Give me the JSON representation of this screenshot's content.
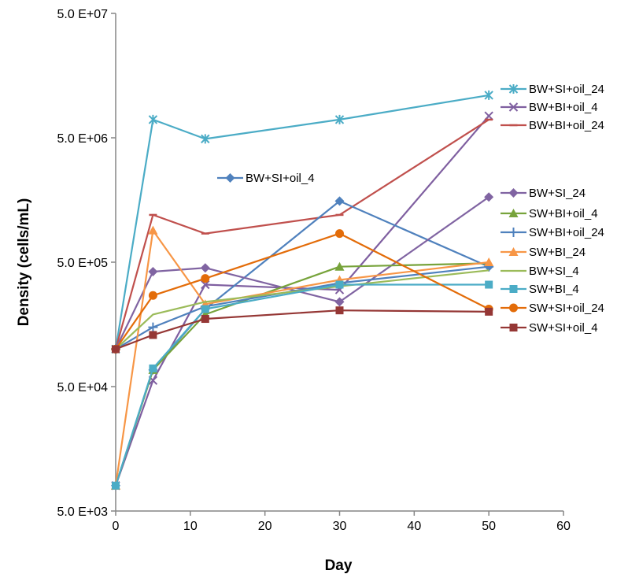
{
  "chart_data": {
    "type": "line",
    "title": "",
    "xlabel": "Day",
    "ylabel": "Density (cells/mL)",
    "xlim": [
      0,
      60
    ],
    "x_ticks": [
      "0",
      "10",
      "20",
      "30",
      "40",
      "50",
      "60"
    ],
    "ylim": [
      5000,
      50000000
    ],
    "y_scale": "log",
    "y_ticks": [
      "5.0 E+03",
      "5.0 E+04",
      "5.0 E+05",
      "5.0 E+06",
      "5.0 E+07"
    ],
    "grid": false,
    "x": [
      0,
      5,
      12,
      30,
      50
    ],
    "series": [
      {
        "name": "BW+SI+oil_24",
        "color": "#4BACC6",
        "marker": "asterisk",
        "values": [
          100000,
          7000000,
          4900000,
          7000000,
          11000000
        ]
      },
      {
        "name": "BW+BI+oil_4",
        "color": "#7F5FA0",
        "marker": "x",
        "values": [
          8000,
          56000,
          330000,
          300000,
          7500000
        ]
      },
      {
        "name": "BW+BI+oil_24",
        "color": "#C0504D",
        "marker": "dash",
        "values": [
          100000,
          1200000,
          850000,
          1200000,
          7000000
        ]
      },
      {
        "name": "BW+SI+oil_4",
        "color": "#4F81BD",
        "marker": "diamond",
        "values": [
          8000,
          68000,
          210000,
          1550000,
          460000
        ]
      },
      {
        "name": "BW+SI_24",
        "color": "#8064A2",
        "marker": "diamond",
        "values": [
          100000,
          420000,
          450000,
          240000,
          1670000
        ]
      },
      {
        "name": "SW+BI+oil_4",
        "color": "#77A33B",
        "marker": "triangle",
        "values": [
          8000,
          68000,
          190000,
          460000,
          490000
        ]
      },
      {
        "name": "SW+BI+oil_24",
        "color": "#4F81BD",
        "marker": "plus",
        "values": [
          100000,
          150000,
          220000,
          340000,
          460000
        ]
      },
      {
        "name": "SW+BI_24",
        "color": "#F79646",
        "marker": "triangle",
        "values": [
          8000,
          900000,
          230000,
          360000,
          500000
        ]
      },
      {
        "name": "BW+SI_4",
        "color": "#9BBB59",
        "marker": "none",
        "values": [
          100000,
          190000,
          240000,
          320000,
          430000
        ]
      },
      {
        "name": "SW+BI_4",
        "color": "#4BACC6",
        "marker": "square",
        "values": [
          8000,
          70000,
          210000,
          330000,
          330000
        ]
      },
      {
        "name": "SW+SI+oil_24",
        "color": "#E36C09",
        "marker": "circle",
        "values": [
          100000,
          270000,
          370000,
          850000,
          210000
        ]
      },
      {
        "name": "SW+SI+oil_4",
        "color": "#953735",
        "marker": "square",
        "values": [
          100000,
          130000,
          175000,
          205000,
          200000
        ]
      }
    ]
  }
}
